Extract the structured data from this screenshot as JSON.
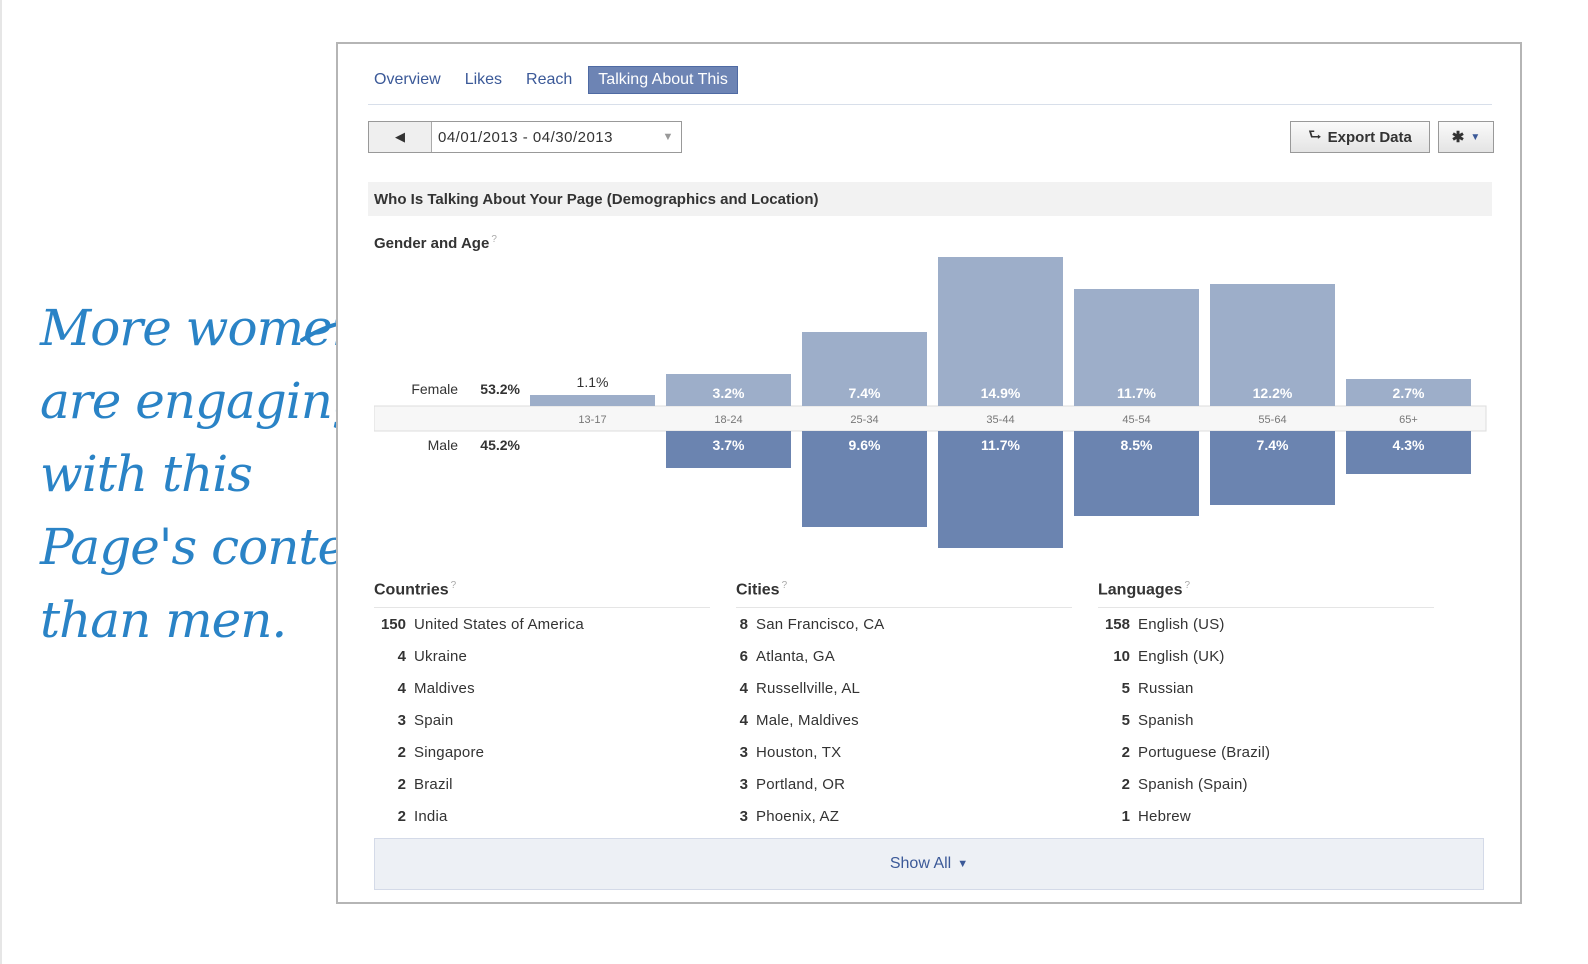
{
  "annotation": {
    "lines": [
      "More women",
      "are engaging",
      "with this",
      "Page's content",
      "than men."
    ]
  },
  "tabs": [
    {
      "label": "Overview",
      "active": false
    },
    {
      "label": "Likes",
      "active": false
    },
    {
      "label": "Reach",
      "active": false
    },
    {
      "label": "Talking About This",
      "active": true
    }
  ],
  "date_range": {
    "prev_icon": "left-triangle-icon",
    "value": "04/01/2013 - 04/30/2013"
  },
  "toolbar": {
    "export_label": "Export Data",
    "export_icon": "upload-icon",
    "settings_icon": "gear-icon"
  },
  "section": {
    "title": "Who Is Talking About Your Page (Demographics and Location)",
    "subtitle": "Gender and Age",
    "help_mark": "?"
  },
  "chart_data": {
    "type": "bar",
    "categories": [
      "13-17",
      "18-24",
      "25-34",
      "35-44",
      "45-54",
      "55-64",
      "65+"
    ],
    "series": [
      {
        "name": "Female",
        "total": "53.2%",
        "values": [
          1.1,
          3.2,
          7.4,
          14.9,
          11.7,
          12.2,
          2.7
        ],
        "labels": [
          "1.1%",
          "3.2%",
          "7.4%",
          "14.9%",
          "11.7%",
          "12.2%",
          "2.7%"
        ],
        "color": "#9daec9"
      },
      {
        "name": "Male",
        "total": "45.2%",
        "values": [
          0,
          3.7,
          9.6,
          11.7,
          8.5,
          7.4,
          4.3
        ],
        "labels": [
          "",
          "3.7%",
          "9.6%",
          "11.7%",
          "8.5%",
          "7.4%",
          "4.3%"
        ],
        "color": "#6b84b0"
      }
    ]
  },
  "lists": {
    "countries": {
      "title": "Countries",
      "rows": [
        {
          "n": "150",
          "label": "United States of America"
        },
        {
          "n": "4",
          "label": "Ukraine"
        },
        {
          "n": "4",
          "label": "Maldives"
        },
        {
          "n": "3",
          "label": "Spain"
        },
        {
          "n": "2",
          "label": "Singapore"
        },
        {
          "n": "2",
          "label": "Brazil"
        },
        {
          "n": "2",
          "label": "India"
        }
      ]
    },
    "cities": {
      "title": "Cities",
      "rows": [
        {
          "n": "8",
          "label": "San Francisco, CA"
        },
        {
          "n": "6",
          "label": "Atlanta, GA"
        },
        {
          "n": "4",
          "label": "Russellville, AL"
        },
        {
          "n": "4",
          "label": "Male, Maldives"
        },
        {
          "n": "3",
          "label": "Houston, TX"
        },
        {
          "n": "3",
          "label": "Portland, OR"
        },
        {
          "n": "3",
          "label": "Phoenix, AZ"
        }
      ]
    },
    "languages": {
      "title": "Languages",
      "rows": [
        {
          "n": "158",
          "label": "English (US)"
        },
        {
          "n": "10",
          "label": "English (UK)"
        },
        {
          "n": "5",
          "label": "Russian"
        },
        {
          "n": "5",
          "label": "Spanish"
        },
        {
          "n": "2",
          "label": "Portuguese (Brazil)"
        },
        {
          "n": "2",
          "label": "Spanish (Spain)"
        },
        {
          "n": "1",
          "label": "Hebrew"
        }
      ]
    }
  },
  "show_all": {
    "label": "Show All",
    "icon": "caret-down-icon"
  }
}
